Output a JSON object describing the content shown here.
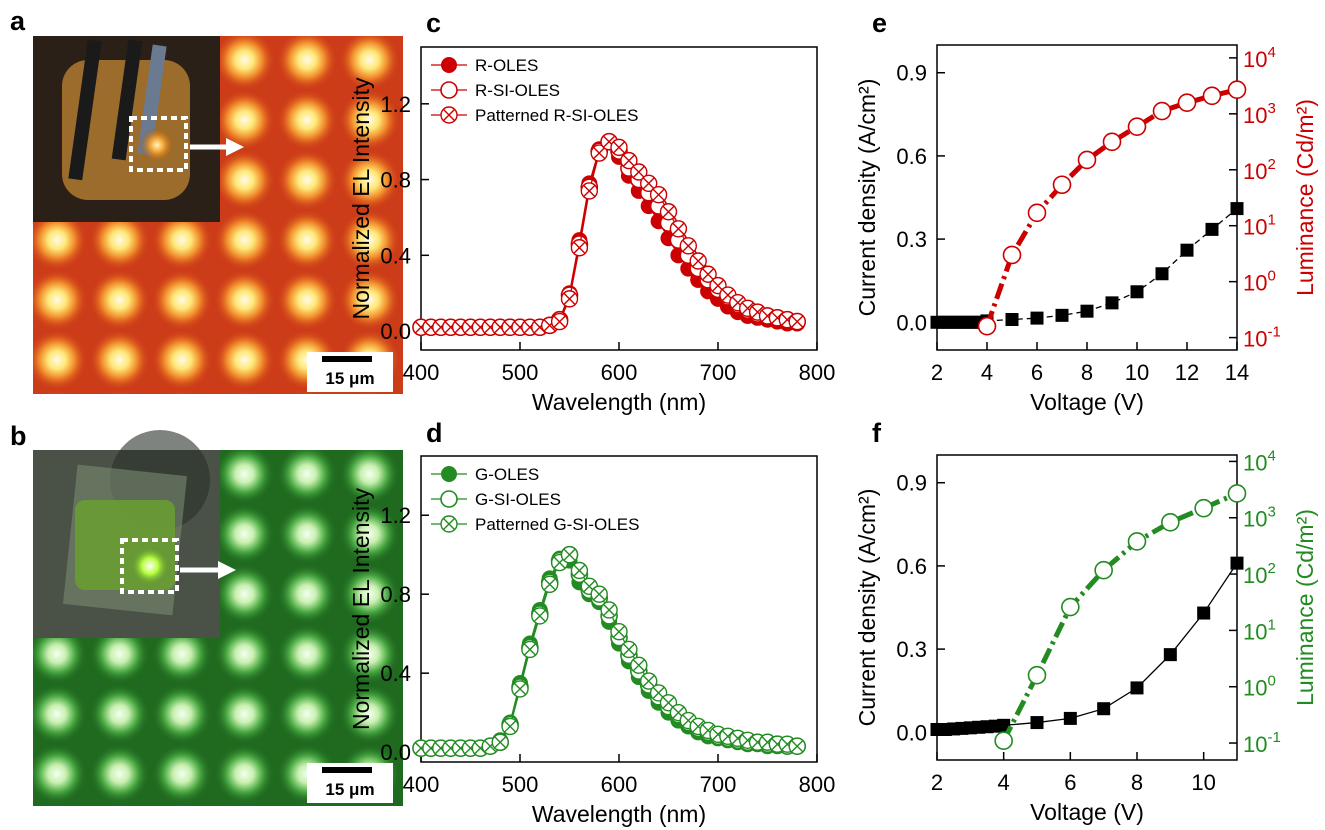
{
  "image_panels": [
    {
      "label": "a",
      "scale_bar": "15 μm"
    },
    {
      "label": "b",
      "scale_bar": "15 μm"
    }
  ],
  "chart_data": [
    {
      "type": "line",
      "panel_label": "c",
      "x_label": "Wavelength (nm)",
      "y_label": "Normalized EL Intensity",
      "xlim": [
        400,
        800
      ],
      "xticks": [
        400,
        500,
        600,
        700,
        800
      ],
      "ylim": [
        -0.1,
        1.5
      ],
      "yticks": [
        {
          "value": 0,
          "label": "0.0"
        },
        0.4,
        0.8,
        1.2
      ],
      "legend": "upper left",
      "x": [
        400,
        410,
        420,
        430,
        440,
        450,
        460,
        470,
        480,
        490,
        500,
        510,
        520,
        530,
        540,
        550,
        560,
        570,
        580,
        590,
        600,
        610,
        620,
        630,
        640,
        650,
        660,
        670,
        680,
        690,
        700,
        710,
        720,
        730,
        740,
        750,
        760,
        770,
        780
      ],
      "series": [
        {
          "name": "R-OLES",
          "color": "#cc0000",
          "marker": "filled-circle",
          "line_style": "solid",
          "values": [
            0.02,
            0.02,
            0.02,
            0.02,
            0.02,
            0.02,
            0.02,
            0.02,
            0.02,
            0.02,
            0.02,
            0.02,
            0.02,
            0.03,
            0.06,
            0.2,
            0.48,
            0.78,
            0.96,
            1.0,
            0.92,
            0.82,
            0.74,
            0.66,
            0.58,
            0.49,
            0.4,
            0.33,
            0.27,
            0.21,
            0.17,
            0.13,
            0.1,
            0.08,
            0.07,
            0.06,
            0.05,
            0.04,
            0.04
          ]
        },
        {
          "name": "R-SI-OLES",
          "color": "#cc0000",
          "marker": "open-circle",
          "line_style": "solid",
          "values": [
            0.02,
            0.02,
            0.02,
            0.02,
            0.02,
            0.02,
            0.02,
            0.02,
            0.02,
            0.02,
            0.02,
            0.02,
            0.02,
            0.03,
            0.06,
            0.19,
            0.46,
            0.76,
            0.95,
            1.0,
            0.95,
            0.86,
            0.8,
            0.73,
            0.66,
            0.57,
            0.48,
            0.4,
            0.33,
            0.27,
            0.22,
            0.18,
            0.14,
            0.11,
            0.09,
            0.08,
            0.07,
            0.06,
            0.05
          ]
        },
        {
          "name": "Patterned R-SI-OLES",
          "color": "#cc0000",
          "marker": "crossed-circle",
          "line_style": "solid",
          "values": [
            0.02,
            0.02,
            0.02,
            0.02,
            0.02,
            0.02,
            0.02,
            0.02,
            0.02,
            0.02,
            0.02,
            0.02,
            0.02,
            0.03,
            0.05,
            0.17,
            0.44,
            0.74,
            0.94,
            1.0,
            0.97,
            0.9,
            0.84,
            0.78,
            0.72,
            0.63,
            0.54,
            0.45,
            0.37,
            0.3,
            0.24,
            0.19,
            0.15,
            0.12,
            0.1,
            0.08,
            0.07,
            0.06,
            0.05
          ]
        }
      ]
    },
    {
      "type": "line",
      "panel_label": "d",
      "x_label": "Wavelength (nm)",
      "y_label": "Normalized EL Intensity",
      "xlim": [
        400,
        800
      ],
      "xticks": [
        400,
        500,
        600,
        700,
        800
      ],
      "ylim": [
        -0.05,
        1.5
      ],
      "yticks": [
        {
          "value": 0,
          "label": "0.0"
        },
        0.4,
        0.8,
        1.2
      ],
      "legend": "upper left",
      "x": [
        400,
        410,
        420,
        430,
        440,
        450,
        460,
        470,
        480,
        490,
        500,
        510,
        520,
        530,
        540,
        550,
        560,
        570,
        580,
        590,
        600,
        610,
        620,
        630,
        640,
        650,
        660,
        670,
        680,
        690,
        700,
        710,
        720,
        730,
        740,
        750,
        760,
        770,
        780
      ],
      "series": [
        {
          "name": "G-OLES",
          "color": "#228b22",
          "marker": "filled-circle",
          "line_style": "solid",
          "values": [
            0.02,
            0.02,
            0.02,
            0.02,
            0.02,
            0.02,
            0.02,
            0.03,
            0.06,
            0.15,
            0.35,
            0.55,
            0.72,
            0.88,
            0.98,
            0.97,
            0.86,
            0.8,
            0.76,
            0.66,
            0.55,
            0.46,
            0.38,
            0.31,
            0.25,
            0.2,
            0.16,
            0.13,
            0.1,
            0.08,
            0.07,
            0.06,
            0.05,
            0.04,
            0.04,
            0.03,
            0.03,
            0.03,
            0.03
          ]
        },
        {
          "name": "G-SI-OLES",
          "color": "#228b22",
          "marker": "open-circle",
          "line_style": "solid",
          "values": [
            0.02,
            0.02,
            0.02,
            0.02,
            0.02,
            0.02,
            0.02,
            0.03,
            0.05,
            0.14,
            0.33,
            0.53,
            0.7,
            0.86,
            0.97,
            1.0,
            0.9,
            0.82,
            0.78,
            0.69,
            0.58,
            0.49,
            0.41,
            0.34,
            0.28,
            0.23,
            0.19,
            0.15,
            0.12,
            0.1,
            0.08,
            0.07,
            0.06,
            0.05,
            0.05,
            0.04,
            0.04,
            0.03,
            0.03
          ]
        },
        {
          "name": "Patterned G-SI-OLES",
          "color": "#228b22",
          "marker": "crossed-circle",
          "line_style": "solid",
          "values": [
            0.02,
            0.02,
            0.02,
            0.02,
            0.02,
            0.02,
            0.02,
            0.03,
            0.05,
            0.13,
            0.32,
            0.52,
            0.69,
            0.85,
            0.96,
            1.0,
            0.92,
            0.84,
            0.8,
            0.72,
            0.61,
            0.52,
            0.44,
            0.36,
            0.3,
            0.25,
            0.2,
            0.16,
            0.13,
            0.11,
            0.09,
            0.08,
            0.07,
            0.06,
            0.05,
            0.05,
            0.04,
            0.04,
            0.03
          ]
        }
      ]
    },
    {
      "type": "line",
      "panel_label": "e",
      "x_label": "Voltage (V)",
      "y_label": "Current density (A/cm²)",
      "y2_label": "Luminance (Cd/m²)",
      "y2_color": "#cc0000",
      "y2_scale": "log",
      "xlim": [
        2,
        14
      ],
      "xticks": [
        2,
        4,
        6,
        8,
        10,
        12,
        14
      ],
      "ylim": [
        -0.1,
        1.0
      ],
      "yticks": [
        {
          "value": 0,
          "label": "0.0"
        },
        0.3,
        0.6,
        0.9
      ],
      "y2lim": [
        0.06,
        17000
      ],
      "y2ticks": [
        {
          "value": 0.1,
          "label": "10",
          "exponent": "-1"
        },
        {
          "value": 1,
          "label": "10",
          "exponent": "0"
        },
        {
          "value": 10,
          "label": "10",
          "exponent": "1"
        },
        {
          "value": 100,
          "label": "10",
          "exponent": "2"
        },
        {
          "value": 1000,
          "label": "10",
          "exponent": "3"
        },
        {
          "value": 10000,
          "label": "10",
          "exponent": "4"
        }
      ],
      "series": [
        {
          "color": "#000000",
          "marker": "filled-square",
          "line_style": "dashed",
          "x": [
            2,
            2.25,
            2.5,
            2.75,
            3,
            3.25,
            3.5,
            3.75,
            4,
            5,
            6,
            7,
            8,
            9,
            10,
            11,
            12,
            13,
            14
          ],
          "values": [
            0,
            0,
            0,
            0,
            0,
            0,
            0,
            0,
            0.005,
            0.01,
            0.015,
            0.025,
            0.04,
            0.07,
            0.11,
            0.175,
            0.26,
            0.335,
            0.41
          ]
        },
        {
          "color": "#cc0000",
          "marker": "open-circle",
          "line_style": "dashdot",
          "axis": "y2",
          "x": [
            4,
            5,
            6,
            7,
            8,
            9,
            10,
            11,
            12,
            13,
            14
          ],
          "values": [
            0.16,
            3,
            17,
            54,
            150,
            316,
            590,
            1120,
            1580,
            2100,
            2700
          ]
        }
      ]
    },
    {
      "type": "line",
      "panel_label": "f",
      "x_label": "Voltage (V)",
      "y_label": "Current density (A/cm²)",
      "y2_label": "Luminance (Cd/m²)",
      "y2_color": "#228b22",
      "y2_scale": "log",
      "xlim": [
        2,
        11
      ],
      "xticks": [
        2,
        4,
        6,
        8,
        10
      ],
      "ylim": [
        -0.1,
        1.0
      ],
      "yticks": [
        {
          "value": 0,
          "label": "0.0"
        },
        0.3,
        0.6,
        0.9
      ],
      "y2lim": [
        0.05,
        13000
      ],
      "y2ticks": [
        {
          "value": 0.1,
          "label": "10",
          "exponent": "-1"
        },
        {
          "value": 1,
          "label": "10",
          "exponent": "0"
        },
        {
          "value": 10,
          "label": "10",
          "exponent": "1"
        },
        {
          "value": 100,
          "label": "10",
          "exponent": "2"
        },
        {
          "value": 1000,
          "label": "10",
          "exponent": "3"
        },
        {
          "value": 10000,
          "label": "10",
          "exponent": "4"
        }
      ],
      "series": [
        {
          "color": "#000000",
          "marker": "filled-square",
          "line_style": "solid",
          "x": [
            2,
            2.25,
            2.5,
            2.75,
            3,
            3.25,
            3.5,
            3.75,
            4,
            5,
            6,
            7,
            8,
            9,
            10,
            11
          ],
          "values": [
            0.01,
            0.01,
            0.012,
            0.014,
            0.016,
            0.018,
            0.02,
            0.022,
            0.025,
            0.035,
            0.05,
            0.085,
            0.16,
            0.28,
            0.43,
            0.61
          ]
        },
        {
          "color": "#228b22",
          "marker": "open-circle",
          "line_style": "dashdot",
          "axis": "y2",
          "x": [
            4,
            5,
            6,
            7,
            8,
            9,
            10,
            11
          ],
          "values": [
            0.11,
            1.6,
            26,
            117,
            380,
            830,
            1480,
            2700
          ]
        }
      ]
    }
  ]
}
